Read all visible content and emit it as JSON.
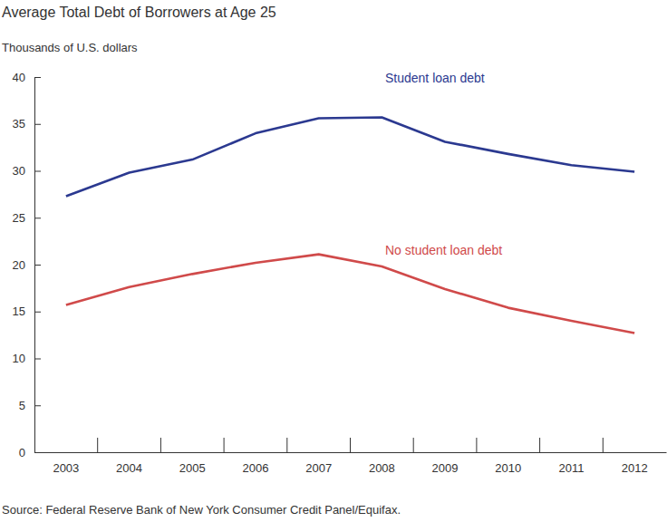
{
  "chart_data": {
    "type": "line",
    "title": "Average Total Debt of Borrowers at Age 25",
    "subtitle": "Thousands of U.S. dollars",
    "source": "Source: Federal Reserve Bank of New York Consumer Credit Panel/Equifax.",
    "categories": [
      "2003",
      "2004",
      "2005",
      "2006",
      "2007",
      "2008",
      "2009",
      "2010",
      "2011",
      "2012"
    ],
    "series": [
      {
        "name": "Student loan debt",
        "color": "#2b3990",
        "values": [
          27.3,
          29.8,
          31.2,
          34.0,
          35.6,
          35.7,
          33.1,
          31.8,
          30.6,
          29.9
        ]
      },
      {
        "name": "No student loan debt",
        "color": "#d04a4a",
        "values": [
          15.7,
          17.6,
          19.0,
          20.2,
          21.1,
          19.8,
          17.4,
          15.4,
          14.0,
          12.7
        ]
      }
    ],
    "ylim": [
      0,
      40
    ],
    "yticks": [
      0,
      5,
      10,
      15,
      20,
      25,
      30,
      35,
      40
    ],
    "grid": false
  }
}
